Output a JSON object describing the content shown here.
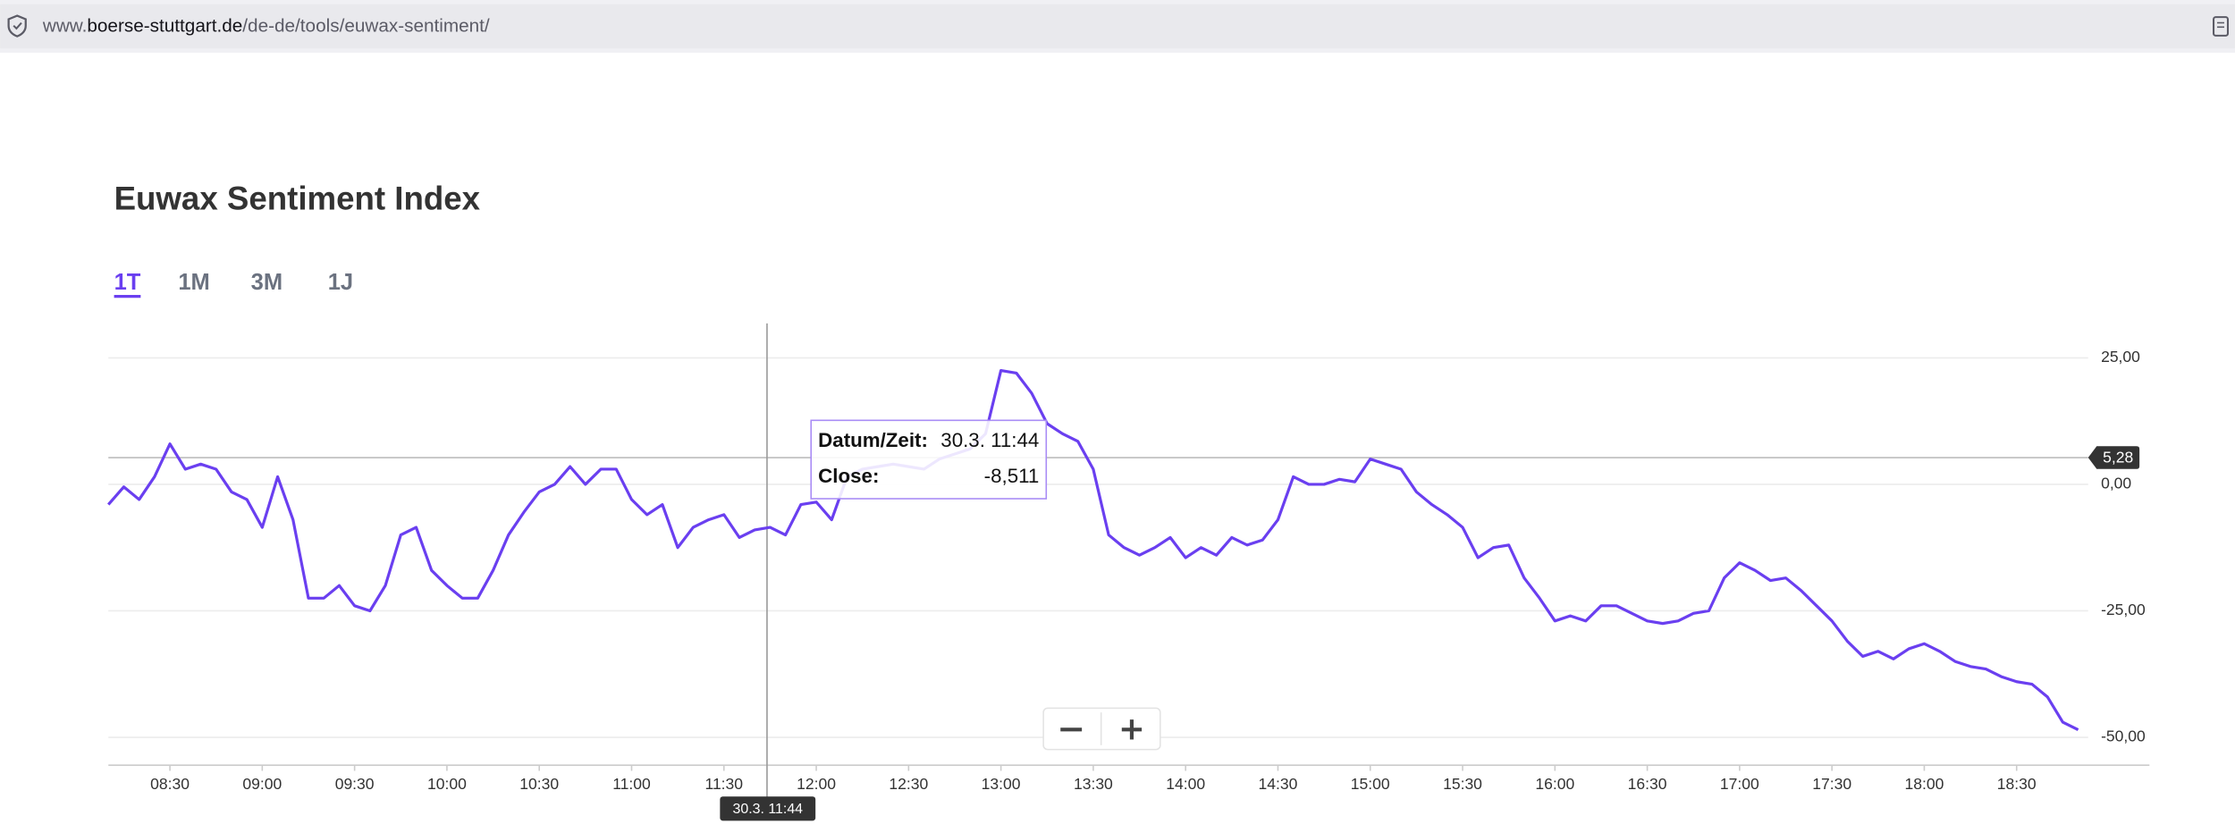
{
  "browser": {
    "url_prefix": "www.",
    "url_domain": "boerse-stuttgart.de",
    "url_path": "/de-de/tools/euwax-sentiment/"
  },
  "page": {
    "title": "Euwax Sentiment Index",
    "tabs": [
      "1T",
      "1M",
      "3M",
      "1J"
    ],
    "active_tab": "1T"
  },
  "chart_data": {
    "type": "line",
    "x": [
      "08:10",
      "08:15",
      "08:20",
      "08:25",
      "08:30",
      "08:35",
      "08:40",
      "08:45",
      "08:50",
      "08:55",
      "09:00",
      "09:05",
      "09:10",
      "09:15",
      "09:20",
      "09:25",
      "09:30",
      "09:35",
      "09:40",
      "09:45",
      "09:50",
      "09:55",
      "10:00",
      "10:05",
      "10:10",
      "10:15",
      "10:20",
      "10:25",
      "10:30",
      "10:35",
      "10:40",
      "10:45",
      "10:50",
      "10:55",
      "11:00",
      "11:05",
      "11:10",
      "11:15",
      "11:20",
      "11:25",
      "11:30",
      "11:35",
      "11:40",
      "11:45",
      "11:50",
      "11:55",
      "12:00",
      "12:05",
      "12:10",
      "12:15",
      "12:20",
      "12:25",
      "12:30",
      "12:35",
      "12:40",
      "12:45",
      "12:50",
      "12:55",
      "13:00",
      "13:05",
      "13:10",
      "13:15",
      "13:20",
      "13:25",
      "13:30",
      "13:35",
      "13:40",
      "13:45",
      "13:50",
      "13:55",
      "14:00",
      "14:05",
      "14:10",
      "14:15",
      "14:20",
      "14:25",
      "14:30",
      "14:35",
      "14:40",
      "14:45",
      "14:50",
      "14:55",
      "15:00",
      "15:05",
      "15:10",
      "15:15",
      "15:20",
      "15:25",
      "15:30",
      "15:35",
      "15:40",
      "15:45",
      "15:50",
      "15:55",
      "16:00",
      "16:05",
      "16:10",
      "16:15",
      "16:20",
      "16:25",
      "16:30",
      "16:35",
      "16:40",
      "16:45",
      "16:50",
      "16:55",
      "17:00",
      "17:05",
      "17:10",
      "17:15",
      "17:20",
      "17:25",
      "17:30",
      "17:35",
      "17:40",
      "17:45",
      "17:50",
      "17:55",
      "18:00",
      "18:05",
      "18:10",
      "18:15",
      "18:20",
      "18:25",
      "18:30",
      "18:35",
      "18:40",
      "18:45",
      "18:50"
    ],
    "series": [
      {
        "color": "#6a3ff0",
        "values": [
          -4,
          -0.5,
          -3,
          1.5,
          8,
          3,
          4,
          3,
          -1.5,
          -3,
          -8.5,
          1.5,
          -7,
          -22.5,
          -22.5,
          -20,
          -24,
          -25,
          -20,
          -10,
          -8.5,
          -17,
          -20,
          -22.5,
          -22.5,
          -17,
          -10,
          -5.5,
          -1.5,
          0,
          3.5,
          0,
          3,
          3,
          -3,
          -6,
          -4,
          -12.5,
          -8.5,
          -7,
          -6,
          -10.5,
          -9,
          -8.5,
          -10,
          -4,
          -3.5,
          -7,
          1.5,
          3,
          3.5,
          4,
          3.5,
          3,
          5,
          6,
          7,
          10,
          22.5,
          22,
          18,
          12,
          10,
          8.5,
          3,
          -10,
          -12.5,
          -14,
          -12.5,
          -10.5,
          -14.5,
          -12.5,
          -14,
          -10.5,
          -12,
          -11,
          -7,
          1.5,
          0,
          0,
          1,
          0.5,
          5,
          4,
          3,
          -1.5,
          -4,
          -6,
          -8.5,
          -14.5,
          -12.5,
          -12,
          -18.5,
          -22.5,
          -27,
          -26,
          -27,
          -24,
          -24,
          -25.5,
          -27,
          -27.5,
          -27,
          -25.5,
          -25,
          -18.5,
          -15.5,
          -17,
          -19,
          -18.5,
          -21,
          -24,
          -27,
          -31,
          -34,
          -33,
          -34.5,
          -32.5,
          -31.5,
          -33,
          -35,
          -36,
          -36.5,
          -38,
          -39,
          -39.5,
          -42,
          -47,
          -48.5
        ]
      }
    ],
    "ylim": [
      -55.5,
      31.8
    ],
    "yticks": [
      {
        "value": 25,
        "label": "25,00"
      },
      {
        "value": 0,
        "label": "0,00"
      },
      {
        "value": -25,
        "label": "-25,00"
      },
      {
        "value": -50,
        "label": "-50,00"
      }
    ],
    "xticks": [
      "08:30",
      "09:00",
      "09:30",
      "10:00",
      "10:30",
      "11:00",
      "11:30",
      "12:00",
      "12:30",
      "13:00",
      "13:30",
      "14:00",
      "14:30",
      "15:00",
      "15:30",
      "16:00",
      "16:30",
      "17:00",
      "17:30",
      "18:00",
      "18:30"
    ],
    "grid": true,
    "reference_line": {
      "value": 5.28,
      "label": "5,28"
    },
    "tooltip": {
      "time_label": "Datum/Zeit:",
      "time": "30.3. 11:44",
      "close_label": "Close:",
      "close": "-8,511"
    }
  }
}
